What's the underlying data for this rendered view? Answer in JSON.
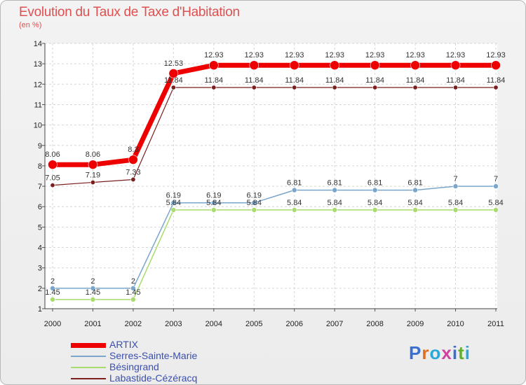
{
  "title": "Evolution du Taux de Taxe d'Habitation",
  "subtitle": "(en %)",
  "logo": {
    "text": "Proxiti",
    "colors": [
      "#3a6fd0",
      "#e07020",
      "#2aa8d8",
      "#d040a0",
      "#3a6fd0",
      "#60b030",
      "#2aa8d8"
    ]
  },
  "chart_data": {
    "type": "line",
    "title": "Evolution du Taux de Taxe d'Habitation",
    "ylabel": "(en %)",
    "xlabel": "",
    "ylim": [
      1,
      14
    ],
    "yticks": [
      1,
      2,
      3,
      4,
      5,
      6,
      7,
      8,
      9,
      10,
      11,
      12,
      13,
      14
    ],
    "grid": true,
    "legend_position": "bottom-left",
    "x": [
      "2000",
      "2001",
      "2002",
      "2003",
      "2004",
      "2005",
      "2006",
      "2007",
      "2008",
      "2009",
      "2010",
      "2011"
    ],
    "series": [
      {
        "name": "Labastide-Cézéracq",
        "color": "#7a1e1e",
        "values": [
          7.05,
          7.19,
          7.33,
          11.84,
          11.84,
          11.84,
          11.84,
          11.84,
          11.84,
          11.84,
          11.84,
          11.84
        ],
        "labels": [
          "7.05",
          "7.19",
          "7.33",
          "11.84",
          "11.84",
          "11.84",
          "11.84",
          "11.84",
          "11.84",
          "11.84",
          "11.84",
          "11.84"
        ]
      },
      {
        "name": "Bésingrand",
        "color": "#a8dc6e",
        "values": [
          1.45,
          1.45,
          1.45,
          5.84,
          5.84,
          5.84,
          5.84,
          5.84,
          5.84,
          5.84,
          5.84,
          5.84
        ],
        "labels": [
          "1.45",
          "1.45",
          "1.45",
          "5.84",
          "5.84",
          "5.84",
          "5.84",
          "5.84",
          "5.84",
          "5.84",
          "5.84",
          "5.84"
        ]
      },
      {
        "name": "Serres-Sainte-Marie",
        "color": "#7aa6cc",
        "values": [
          2,
          2,
          2,
          6.19,
          6.19,
          6.19,
          6.81,
          6.81,
          6.81,
          6.81,
          7,
          7
        ],
        "labels": [
          "2",
          "2",
          "2",
          "6.19",
          "6.19",
          "6.19",
          "6.81",
          "6.81",
          "6.81",
          "6.81",
          "7",
          "7"
        ]
      },
      {
        "name": "ARTIX",
        "color": "#ee0000",
        "values": [
          8.06,
          8.06,
          8.3,
          12.53,
          12.93,
          12.93,
          12.93,
          12.93,
          12.93,
          12.93,
          12.93,
          12.93
        ],
        "labels": [
          "8.06",
          "8.06",
          "8.3",
          "12.53",
          "12.93",
          "12.93",
          "12.93",
          "12.93",
          "12.93",
          "12.93",
          "12.93",
          "12.93"
        ]
      }
    ],
    "legend_order": [
      "ARTIX",
      "Serres-Sainte-Marie",
      "Bésingrand",
      "Labastide-Cézéracq"
    ]
  }
}
